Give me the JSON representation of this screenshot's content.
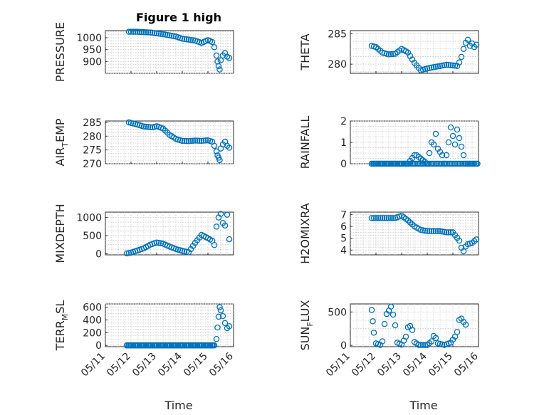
{
  "title": "Figure 1 high",
  "marker_color": "#0072BD",
  "xlabel": "Time",
  "x_ticks": [
    "05/11",
    "05/12",
    "05/13",
    "05/14",
    "05/15",
    "05/16"
  ],
  "chart_data": [
    {
      "type": "scatter",
      "ylabel": "PRESSURE",
      "ylabel_sub": "",
      "ylabel_tail": "",
      "ylim": [
        850,
        1030
      ],
      "yticks": [
        900,
        950,
        1000
      ],
      "xlim": [
        "2023-05-11",
        "2023-05-16"
      ],
      "points": [
        [
          "2023-05-11 22:00",
          1025
        ],
        [
          "2023-05-12 06:00",
          1025
        ],
        [
          "2023-05-12 18:00",
          1022
        ],
        [
          "2023-05-13 06:00",
          1015
        ],
        [
          "2023-05-13 18:00",
          1005
        ],
        [
          "2023-05-14 00:00",
          996
        ],
        [
          "2023-05-14 12:00",
          988
        ],
        [
          "2023-05-14 18:00",
          978
        ],
        [
          "2023-05-15 00:00",
          990
        ],
        [
          "2023-05-15 04:00",
          982
        ],
        [
          "2023-05-15 06:00",
          960
        ],
        [
          "2023-05-15 08:00",
          925
        ],
        [
          "2023-05-15 09:00",
          900
        ],
        [
          "2023-05-15 10:00",
          880
        ],
        [
          "2023-05-15 11:00",
          866
        ],
        [
          "2023-05-15 12:00",
          905
        ],
        [
          "2023-05-15 14:00",
          925
        ],
        [
          "2023-05-15 16:00",
          935
        ],
        [
          "2023-05-15 18:00",
          920
        ],
        [
          "2023-05-15 20:00",
          915
        ]
      ]
    },
    {
      "type": "scatter",
      "ylabel": "THETA",
      "ylabel_sub": "",
      "ylabel_tail": "",
      "ylim": [
        278.5,
        285.5
      ],
      "yticks": [
        280,
        285
      ],
      "xlim": [
        "2023-05-11",
        "2023-05-16"
      ],
      "points": [
        [
          "2023-05-11 20:00",
          283.0
        ],
        [
          "2023-05-12 00:00",
          282.8
        ],
        [
          "2023-05-12 06:00",
          281.9
        ],
        [
          "2023-05-12 12:00",
          281.6
        ],
        [
          "2023-05-12 18:00",
          281.7
        ],
        [
          "2023-05-13 00:00",
          282.5
        ],
        [
          "2023-05-13 06:00",
          281.9
        ],
        [
          "2023-05-13 12:00",
          280.2
        ],
        [
          "2023-05-13 18:00",
          279.0
        ],
        [
          "2023-05-14 00:00",
          279.3
        ],
        [
          "2023-05-14 06:00",
          279.5
        ],
        [
          "2023-05-14 12:00",
          279.7
        ],
        [
          "2023-05-14 18:00",
          279.9
        ],
        [
          "2023-05-15 00:00",
          279.8
        ],
        [
          "2023-05-15 04:00",
          279.7
        ],
        [
          "2023-05-15 06:00",
          280.3
        ],
        [
          "2023-05-15 08:00",
          281.2
        ],
        [
          "2023-05-15 10:00",
          282.5
        ],
        [
          "2023-05-15 12:00",
          283.5
        ],
        [
          "2023-05-15 14:00",
          284.0
        ],
        [
          "2023-05-15 16:00",
          283.0
        ],
        [
          "2023-05-15 18:00",
          283.4
        ],
        [
          "2023-05-15 20:00",
          282.8
        ],
        [
          "2023-05-15 22:00",
          283.2
        ]
      ]
    },
    {
      "type": "scatter",
      "ylabel": "AIR",
      "ylabel_sub": "T",
      "ylabel_tail": "EMP",
      "ylim": [
        270,
        285.5
      ],
      "yticks": [
        270,
        275,
        280,
        285
      ],
      "xlim": [
        "2023-05-11",
        "2023-05-16"
      ],
      "points": [
        [
          "2023-05-11 22:00",
          285.0
        ],
        [
          "2023-05-12 06:00",
          284.2
        ],
        [
          "2023-05-12 12:00",
          283.5
        ],
        [
          "2023-05-12 20:00",
          283.2
        ],
        [
          "2023-05-13 00:00",
          283.6
        ],
        [
          "2023-05-13 06:00",
          282.8
        ],
        [
          "2023-05-13 12:00",
          280.5
        ],
        [
          "2023-05-13 18:00",
          279.0
        ],
        [
          "2023-05-14 00:00",
          278.3
        ],
        [
          "2023-05-14 06:00",
          278.2
        ],
        [
          "2023-05-14 12:00",
          278.4
        ],
        [
          "2023-05-14 18:00",
          278.3
        ],
        [
          "2023-05-15 00:00",
          278.5
        ],
        [
          "2023-05-15 04:00",
          278.0
        ],
        [
          "2023-05-15 06:00",
          276.5
        ],
        [
          "2023-05-15 08:00",
          274.5
        ],
        [
          "2023-05-15 09:00",
          273.0
        ],
        [
          "2023-05-15 10:00",
          272.2
        ],
        [
          "2023-05-15 11:00",
          271.3
        ],
        [
          "2023-05-15 12:00",
          275.5
        ],
        [
          "2023-05-15 14:00",
          277.0
        ],
        [
          "2023-05-15 16:00",
          278.0
        ],
        [
          "2023-05-15 18:00",
          276.5
        ],
        [
          "2023-05-15 20:00",
          275.8
        ]
      ]
    },
    {
      "type": "scatter",
      "ylabel": "RAINFALL",
      "ylabel_sub": "",
      "ylabel_tail": "",
      "ylim": [
        0,
        2
      ],
      "yticks": [
        0,
        1,
        2
      ],
      "xlim": [
        "2023-05-11",
        "2023-05-16"
      ],
      "points": [
        [
          "2023-05-11 20:00",
          0
        ],
        [
          "2023-05-12 12:00",
          0
        ],
        [
          "2023-05-13 06:00",
          0
        ],
        [
          "2023-05-13 12:00",
          0.4
        ],
        [
          "2023-05-13 14:00",
          0.4
        ],
        [
          "2023-05-14 00:00",
          0
        ],
        [
          "2023-05-14 04:00",
          1.0
        ],
        [
          "2023-05-14 06:00",
          0.9
        ],
        [
          "2023-05-14 08:00",
          1.4
        ],
        [
          "2023-05-14 10:00",
          0.7
        ],
        [
          "2023-05-14 14:00",
          0.4
        ],
        [
          "2023-05-14 16:00",
          0
        ],
        [
          "2023-05-14 18:00",
          0.4
        ],
        [
          "2023-05-14 20:00",
          1.0
        ],
        [
          "2023-05-14 22:00",
          1.7
        ],
        [
          "2023-05-15 02:00",
          0.9
        ],
        [
          "2023-05-15 04:00",
          1.6
        ],
        [
          "2023-05-15 12:00",
          0
        ],
        [
          "2023-05-15 22:00",
          0
        ]
      ],
      "baseline": {
        "from": "2023-05-11 20:00",
        "to": "2023-05-15 23:00",
        "value": 0
      }
    },
    {
      "type": "scatter",
      "ylabel": "MIXDEPTH",
      "ylabel_sub": "",
      "ylabel_tail": "",
      "ylim": [
        -30,
        1150
      ],
      "yticks": [
        0,
        500,
        1000
      ],
      "xlim": [
        "2023-05-11",
        "2023-05-16"
      ],
      "points": [
        [
          "2023-05-11 20:00",
          10
        ],
        [
          "2023-05-12 00:00",
          30
        ],
        [
          "2023-05-12 06:00",
          90
        ],
        [
          "2023-05-12 12:00",
          150
        ],
        [
          "2023-05-12 18:00",
          250
        ],
        [
          "2023-05-13 00:00",
          310
        ],
        [
          "2023-05-13 06:00",
          280
        ],
        [
          "2023-05-13 12:00",
          200
        ],
        [
          "2023-05-13 18:00",
          130
        ],
        [
          "2023-05-14 00:00",
          80
        ],
        [
          "2023-05-14 06:00",
          40
        ],
        [
          "2023-05-14 12:00",
          300
        ],
        [
          "2023-05-14 18:00",
          520
        ],
        [
          "2023-05-15 00:00",
          430
        ],
        [
          "2023-05-15 04:00",
          360
        ],
        [
          "2023-05-15 06:00",
          240
        ],
        [
          "2023-05-15 08:00",
          750
        ],
        [
          "2023-05-15 10:00",
          1000
        ],
        [
          "2023-05-15 12:00",
          1100
        ],
        [
          "2023-05-15 14:00",
          850
        ],
        [
          "2023-05-15 16:00",
          780
        ],
        [
          "2023-05-15 18:00",
          1080
        ],
        [
          "2023-05-15 20:00",
          400
        ]
      ]
    },
    {
      "type": "scatter",
      "ylabel": "H2OMIXRA",
      "ylabel_sub": "",
      "ylabel_tail": "",
      "ylim": [
        3.6,
        7.2
      ],
      "yticks": [
        4,
        5,
        6,
        7
      ],
      "xlim": [
        "2023-05-11",
        "2023-05-16"
      ],
      "points": [
        [
          "2023-05-11 20:00",
          6.7
        ],
        [
          "2023-05-12 06:00",
          6.7
        ],
        [
          "2023-05-12 18:00",
          6.7
        ],
        [
          "2023-05-13 00:00",
          6.9
        ],
        [
          "2023-05-13 06:00",
          6.5
        ],
        [
          "2023-05-13 12:00",
          6.0
        ],
        [
          "2023-05-13 18:00",
          5.7
        ],
        [
          "2023-05-14 00:00",
          5.6
        ],
        [
          "2023-05-14 12:00",
          5.6
        ],
        [
          "2023-05-14 18:00",
          5.5
        ],
        [
          "2023-05-15 00:00",
          5.5
        ],
        [
          "2023-05-15 06:00",
          4.8
        ],
        [
          "2023-05-15 08:00",
          4.2
        ],
        [
          "2023-05-15 10:00",
          3.9
        ],
        [
          "2023-05-15 12:00",
          4.3
        ],
        [
          "2023-05-15 14:00",
          4.5
        ],
        [
          "2023-05-15 18:00",
          4.6
        ],
        [
          "2023-05-15 22:00",
          4.9
        ]
      ]
    },
    {
      "type": "scatter",
      "ylabel": "TERR",
      "ylabel_sub": "M",
      "ylabel_tail": "SL",
      "ylim": [
        -20,
        650
      ],
      "yticks": [
        0,
        200,
        400,
        600
      ],
      "xlim": [
        "2023-05-11",
        "2023-05-16"
      ],
      "points": [
        [
          "2023-05-11 20:00",
          0
        ],
        [
          "2023-05-12 12:00",
          0
        ],
        [
          "2023-05-13 12:00",
          0
        ],
        [
          "2023-05-14 12:00",
          0
        ],
        [
          "2023-05-15 06:00",
          0
        ],
        [
          "2023-05-15 08:00",
          100
        ],
        [
          "2023-05-15 09:00",
          280
        ],
        [
          "2023-05-15 10:00",
          450
        ],
        [
          "2023-05-15 11:00",
          600
        ],
        [
          "2023-05-15 12:00",
          550
        ],
        [
          "2023-05-15 14:00",
          460
        ],
        [
          "2023-05-15 16:00",
          350
        ],
        [
          "2023-05-15 18:00",
          270
        ],
        [
          "2023-05-15 20:00",
          300
        ]
      ],
      "baseline": {
        "from": "2023-05-11 20:00",
        "to": "2023-05-15 06:00",
        "value": 0
      }
    },
    {
      "type": "scatter",
      "ylabel": "SUN",
      "ylabel_sub": "F",
      "ylabel_tail": "LUX",
      "ylim": [
        -20,
        620
      ],
      "yticks": [
        0,
        500
      ],
      "xlim": [
        "2023-05-11",
        "2023-05-16"
      ],
      "points": [
        [
          "2023-05-11 20:00",
          530
        ],
        [
          "2023-05-11 21:00",
          360
        ],
        [
          "2023-05-11 22:00",
          190
        ],
        [
          "2023-05-12 00:00",
          30
        ],
        [
          "2023-05-12 04:00",
          5
        ],
        [
          "2023-05-12 06:00",
          60
        ],
        [
          "2023-05-12 08:00",
          320
        ],
        [
          "2023-05-12 10:00",
          470
        ],
        [
          "2023-05-12 12:00",
          520
        ],
        [
          "2023-05-12 14:00",
          580
        ],
        [
          "2023-05-12 16:00",
          460
        ],
        [
          "2023-05-12 18:00",
          300
        ],
        [
          "2023-05-12 20:00",
          40
        ],
        [
          "2023-05-13 00:00",
          10
        ],
        [
          "2023-05-13 04:00",
          130
        ],
        [
          "2023-05-13 06:00",
          270
        ],
        [
          "2023-05-13 08:00",
          290
        ],
        [
          "2023-05-13 10:00",
          230
        ],
        [
          "2023-05-13 12:00",
          50
        ],
        [
          "2023-05-13 16:00",
          5
        ],
        [
          "2023-05-14 00:00",
          5
        ],
        [
          "2023-05-14 04:00",
          60
        ],
        [
          "2023-05-14 06:00",
          140
        ],
        [
          "2023-05-14 08:00",
          110
        ],
        [
          "2023-05-14 10:00",
          30
        ],
        [
          "2023-05-14 16:00",
          5
        ],
        [
          "2023-05-14 22:00",
          40
        ],
        [
          "2023-05-15 02:00",
          130
        ],
        [
          "2023-05-15 04:00",
          200
        ],
        [
          "2023-05-15 06:00",
          380
        ],
        [
          "2023-05-15 08:00",
          400
        ],
        [
          "2023-05-15 10:00",
          350
        ],
        [
          "2023-05-15 12:00",
          310
        ]
      ]
    }
  ]
}
